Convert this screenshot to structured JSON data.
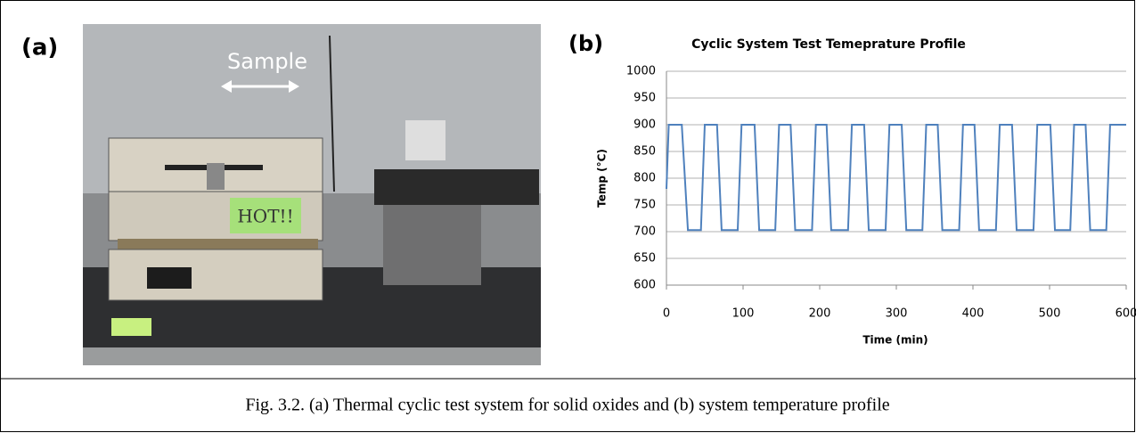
{
  "panel_a": {
    "label": "(a)",
    "annotation": "Sample",
    "sign": "HOT!!"
  },
  "chart_data": {
    "type": "line",
    "label": "(b)",
    "title": "Cyclic System Test Temeprature Profile",
    "x_label": "Time (min)",
    "y_label": "Temp (°C)",
    "x": [
      0,
      3,
      20,
      28,
      45,
      50,
      66,
      72,
      93,
      98,
      115,
      121,
      142,
      147,
      162,
      168,
      190,
      195,
      209,
      215,
      237,
      242,
      258,
      264,
      286,
      291,
      307,
      313,
      334,
      339,
      354,
      360,
      382,
      387,
      402,
      408,
      430,
      435,
      451,
      457,
      479,
      484,
      501,
      507,
      527,
      532,
      547,
      553,
      574,
      579,
      600
    ],
    "series": [
      {
        "color": "#4f81bd",
        "values": [
          780,
          900,
          900,
          703,
          703,
          900,
          900,
          703,
          703,
          900,
          900,
          703,
          703,
          900,
          900,
          703,
          703,
          900,
          900,
          703,
          703,
          900,
          900,
          703,
          703,
          900,
          900,
          703,
          703,
          900,
          900,
          703,
          703,
          900,
          900,
          703,
          703,
          900,
          900,
          703,
          703,
          900,
          900,
          703,
          703,
          900,
          900,
          703,
          703,
          900,
          900
        ]
      }
    ],
    "xlim": [
      0,
      600
    ],
    "xticks": [
      0,
      100,
      200,
      300,
      400,
      500,
      600
    ],
    "ylim": [
      600,
      1000
    ],
    "yticks": [
      600,
      650,
      700,
      750,
      800,
      850,
      900,
      950,
      1000
    ],
    "grid": true
  },
  "caption": "Fig. 3.2. (a) Thermal cyclic test system for solid oxides and (b) system temperature profile"
}
